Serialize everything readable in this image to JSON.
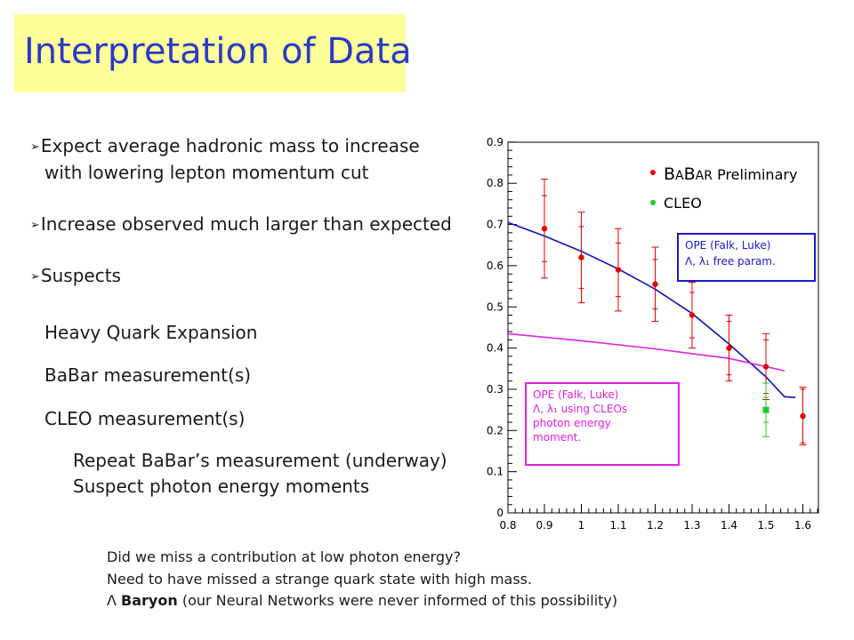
{
  "slide": {
    "title": "Interpretation of Data",
    "bullets": [
      {
        "line1": "Expect average hadronic mass to increase",
        "line2": "with lowering lepton momentum cut"
      },
      {
        "line1": "Increase observed much larger than expected"
      },
      {
        "line1": "Suspects"
      }
    ],
    "suspects": [
      "Heavy Quark Expansion",
      "BaBar measurement(s)",
      "CLEO measurement(s)"
    ],
    "cleo_sub": [
      "Repeat BaBar’s measurement (underway)",
      "Suspect photon energy moments"
    ],
    "notes": [
      "Did we miss a contribution at low photon energy?",
      "Need to have missed a strange quark state with high mass."
    ],
    "baryon_note": {
      "symbol": "Λ",
      "bold": "Baryon",
      "rest": "(our Neural Networks were never informed of this possibility)"
    },
    "bullet_glyph": "➢"
  },
  "chart_data": {
    "type": "scatter",
    "xlim": [
      0.8,
      1.65
    ],
    "ylim": [
      0,
      0.9
    ],
    "xticks": [
      0.8,
      0.9,
      1,
      1.1,
      1.2,
      1.3,
      1.4,
      1.5,
      1.6
    ],
    "xtick_labels": [
      "0.8",
      "0.9",
      "1",
      "1.1",
      "1.2",
      "1.3",
      "1.4",
      "1.5",
      "1.6"
    ],
    "yticks": [
      0,
      0.1,
      0.2,
      0.3,
      0.4,
      0.5,
      0.6,
      0.7,
      0.8,
      0.9
    ],
    "ytick_labels": [
      "0",
      "0.1",
      "0.2",
      "0.3",
      "0.4",
      "0.5",
      "0.6",
      "0.7",
      "0.8",
      "0.9"
    ],
    "legend": {
      "babar_label_prefix": "B",
      "babar_label_small1": "A",
      "babar_label_mid": "B",
      "babar_label_small2": "AR",
      "babar_label_suffix": " Preliminary",
      "cleo_label": "CLEO"
    },
    "series": [
      {
        "name": "BABAR Preliminary",
        "color": "#e00000",
        "x": [
          0.9,
          1.0,
          1.1,
          1.2,
          1.3,
          1.4,
          1.5,
          1.6
        ],
        "y": [
          0.69,
          0.62,
          0.59,
          0.555,
          0.48,
          0.4,
          0.355,
          0.235
        ],
        "err_outer": [
          0.12,
          0.11,
          0.1,
          0.09,
          0.08,
          0.08,
          0.08,
          0.07
        ],
        "err_inner": [
          0.08,
          0.075,
          0.065,
          0.06,
          0.055,
          0.065,
          0.065,
          0.065
        ]
      },
      {
        "name": "CLEO",
        "color": "#22cc22",
        "x": [
          1.5
        ],
        "y": [
          0.25
        ],
        "err_outer": [
          0.065
        ],
        "err_inner": [
          0.03
        ]
      }
    ],
    "curves": [
      {
        "color": "#1010c0",
        "x": [
          0.8,
          0.9,
          1.0,
          1.1,
          1.2,
          1.3,
          1.4,
          1.5,
          1.55,
          1.58
        ],
        "y": [
          0.705,
          0.672,
          0.635,
          0.592,
          0.543,
          0.484,
          0.41,
          0.33,
          0.282,
          0.28
        ]
      },
      {
        "color": "#e020e0",
        "x": [
          0.8,
          1.0,
          1.2,
          1.4,
          1.55
        ],
        "y": [
          0.435,
          0.418,
          0.398,
          0.375,
          0.345
        ]
      }
    ],
    "annotations": [
      {
        "color": "#1a1ad0",
        "lines": [
          "OPE  (Falk, Luke)",
          "Λ, λ₁ free param."
        ]
      },
      {
        "color": "#e020e0",
        "lines": [
          "OPE  (Falk, Luke)",
          "Λ, λ₁ using CLEOs",
          "photon energy",
          "moment."
        ]
      }
    ]
  }
}
